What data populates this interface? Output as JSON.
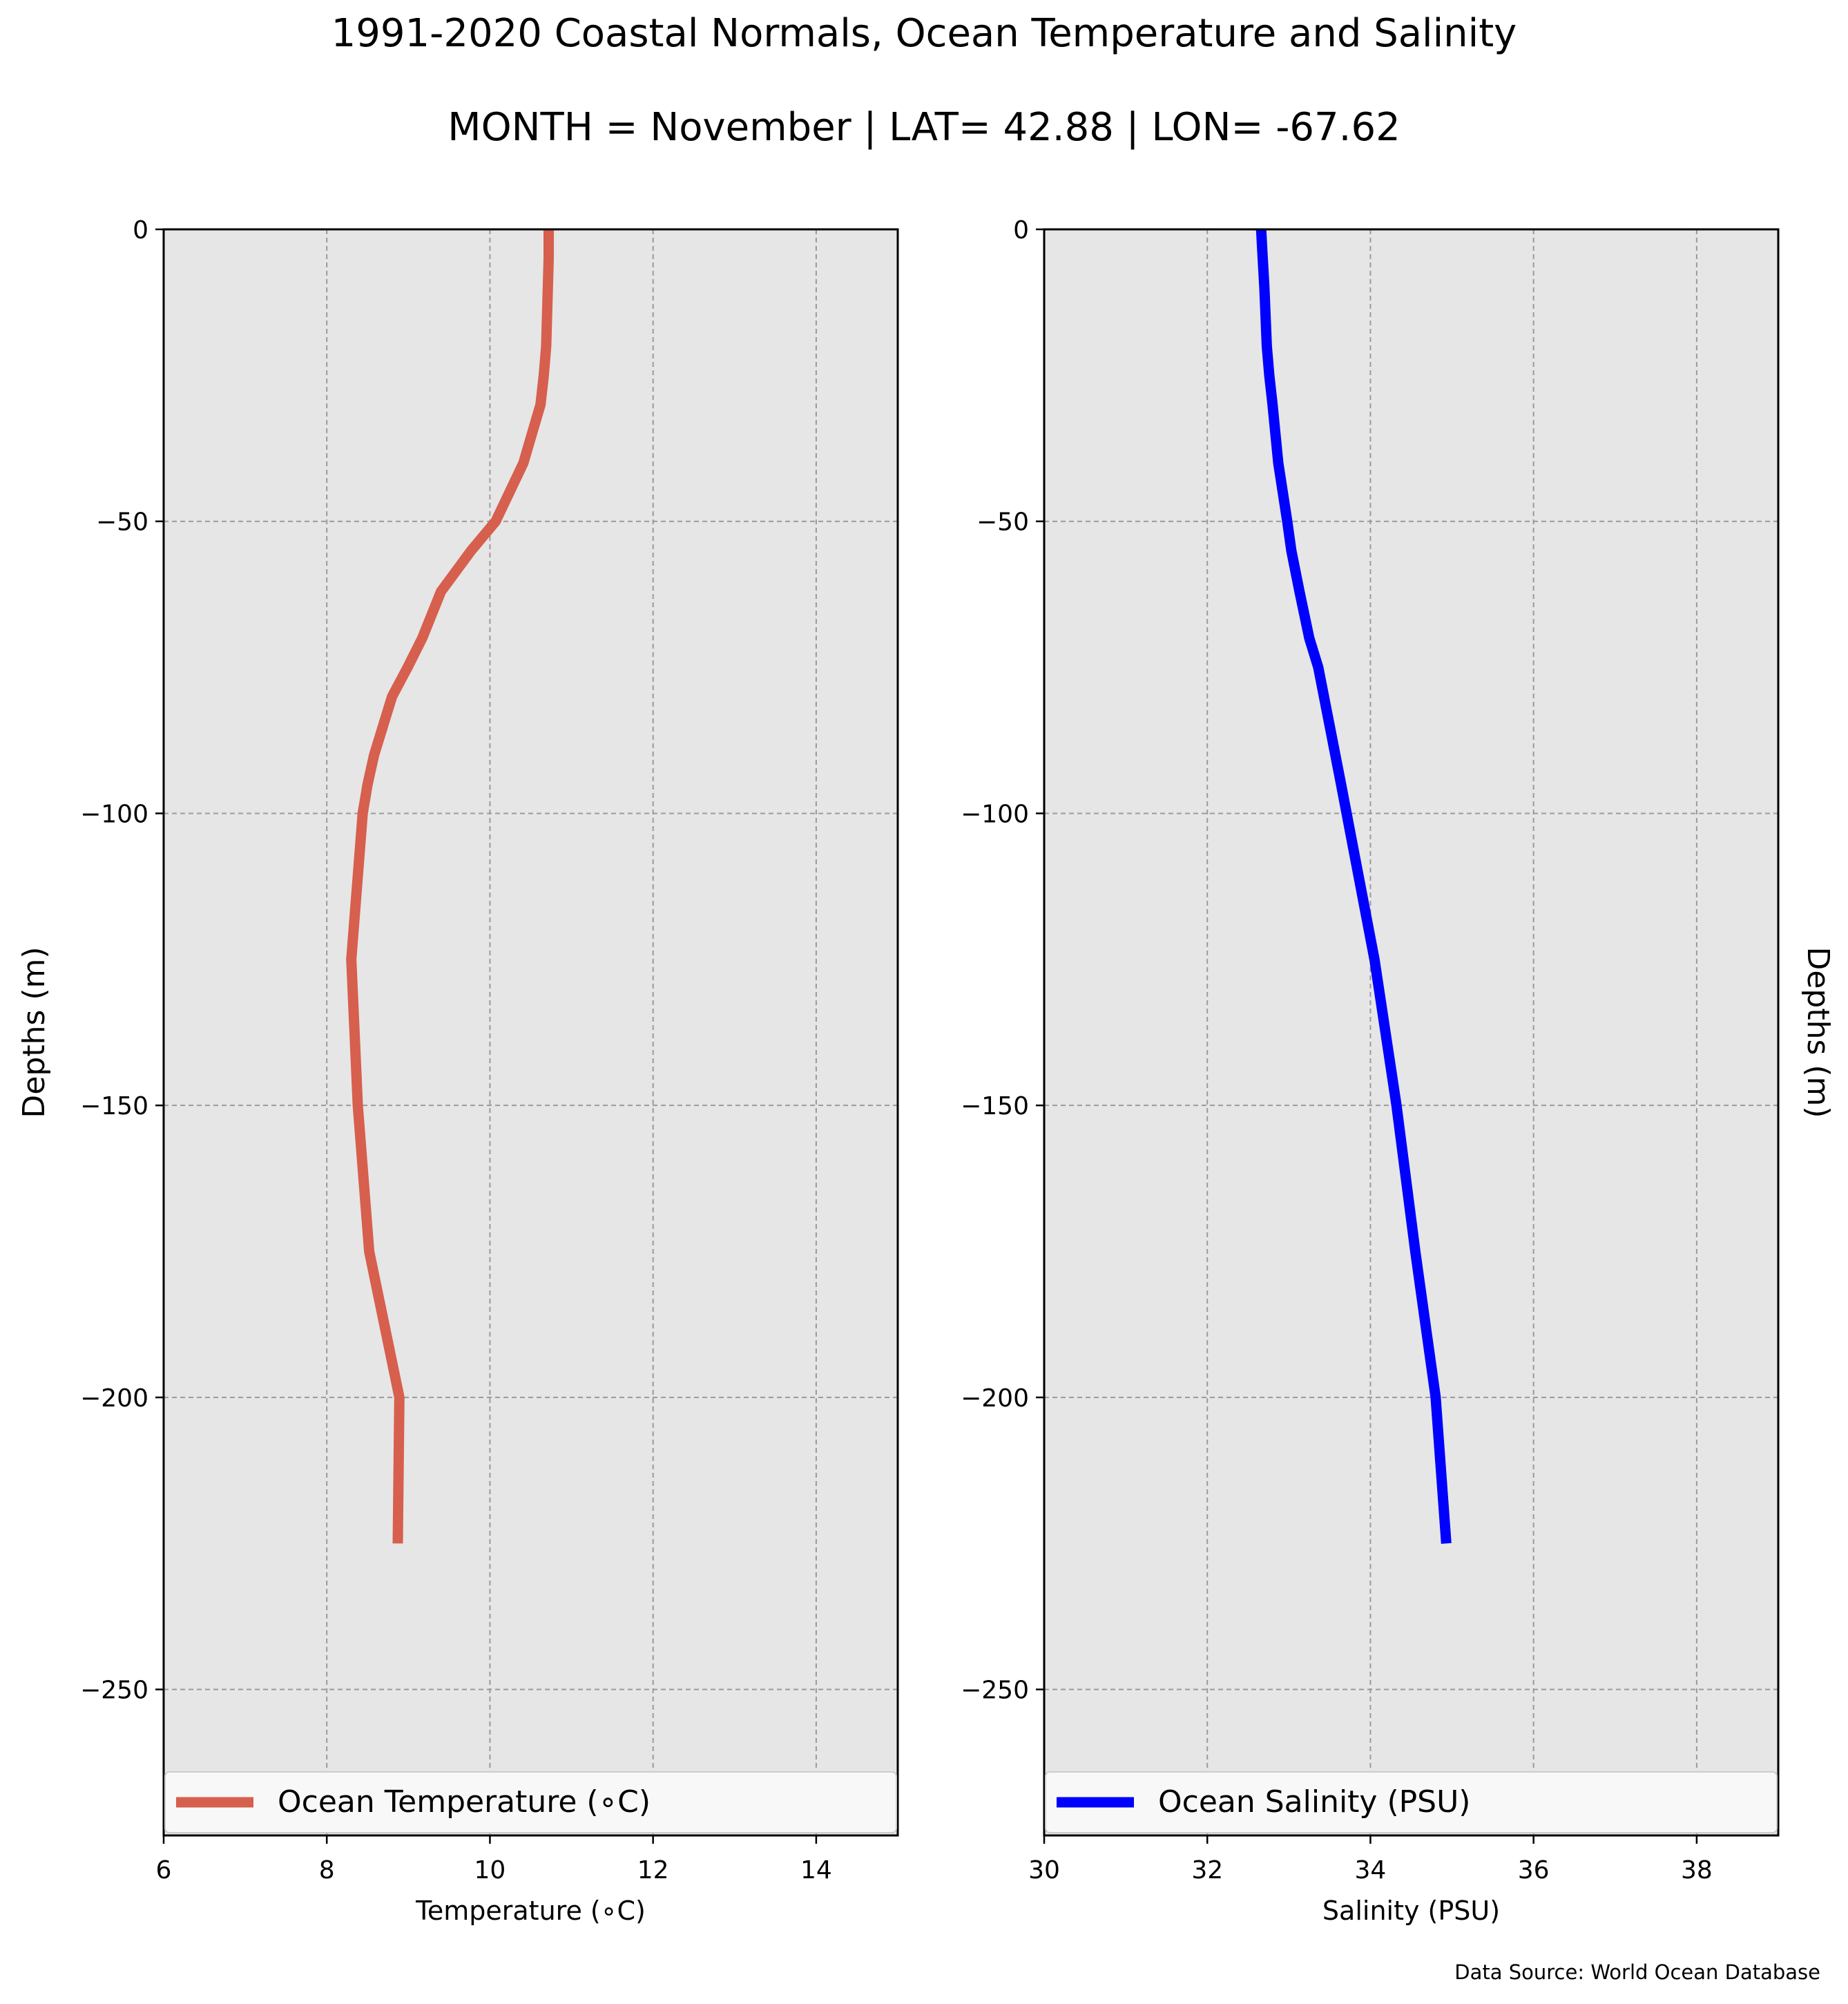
{
  "figure": {
    "title": "1991-2020 Coastal Normals, Ocean Temperature and Salinity",
    "subtitle": "MONTH = November | LAT= 42.88 | LON= -67.62",
    "source_note": "Data Source: World Ocean Database",
    "background": "#e6e6e6"
  },
  "chart_data": [
    {
      "type": "line",
      "xlabel": "Temperature (∘C)",
      "ylabel": "Depths (m)",
      "xlim": [
        6,
        15
      ],
      "ylim": [
        -275,
        0
      ],
      "xticks": [
        6,
        8,
        10,
        12,
        14
      ],
      "yticks": [
        0,
        -50,
        -100,
        -150,
        -200,
        -250
      ],
      "grid": true,
      "legend": "lower center",
      "series": [
        {
          "name": "Ocean Temperature (∘C)",
          "color": "#d65f4e",
          "x": [
            10.72,
            10.72,
            10.71,
            10.7,
            10.69,
            10.66,
            10.62,
            10.41,
            10.07,
            9.77,
            9.4,
            9.17,
            8.99,
            8.8,
            8.58,
            8.5,
            8.44,
            8.3,
            8.38,
            8.52,
            8.89,
            8.87
          ],
          "y": [
            0,
            -5,
            -10,
            -15,
            -20,
            -25,
            -30,
            -40,
            -50,
            -55,
            -62,
            -70,
            -75,
            -80,
            -90,
            -95,
            -100,
            -125,
            -150,
            -175,
            -200,
            -225
          ]
        }
      ]
    },
    {
      "type": "line",
      "xlabel": "Salinity (PSU)",
      "ylabel": "Depths (m)",
      "xlim": [
        30,
        39
      ],
      "ylim": [
        -275,
        0
      ],
      "xticks": [
        30,
        32,
        34,
        36,
        38
      ],
      "yticks": [
        0,
        -50,
        -100,
        -150,
        -200,
        -250
      ],
      "grid": true,
      "legend": "lower center",
      "series": [
        {
          "name": "Ocean Salinity (PSU)",
          "color": "#0000ff",
          "x": [
            32.66,
            32.68,
            32.7,
            32.73,
            32.76,
            32.8,
            32.87,
            32.98,
            33.03,
            33.13,
            33.25,
            33.36,
            33.5,
            33.64,
            34.05,
            34.32,
            34.55,
            34.8,
            34.93
          ],
          "y": [
            0,
            -5,
            -10,
            -20,
            -25,
            -30,
            -40,
            -50,
            -55,
            -62,
            -70,
            -75,
            -85,
            -95,
            -125,
            -150,
            -175,
            -200,
            -225
          ]
        }
      ]
    }
  ]
}
